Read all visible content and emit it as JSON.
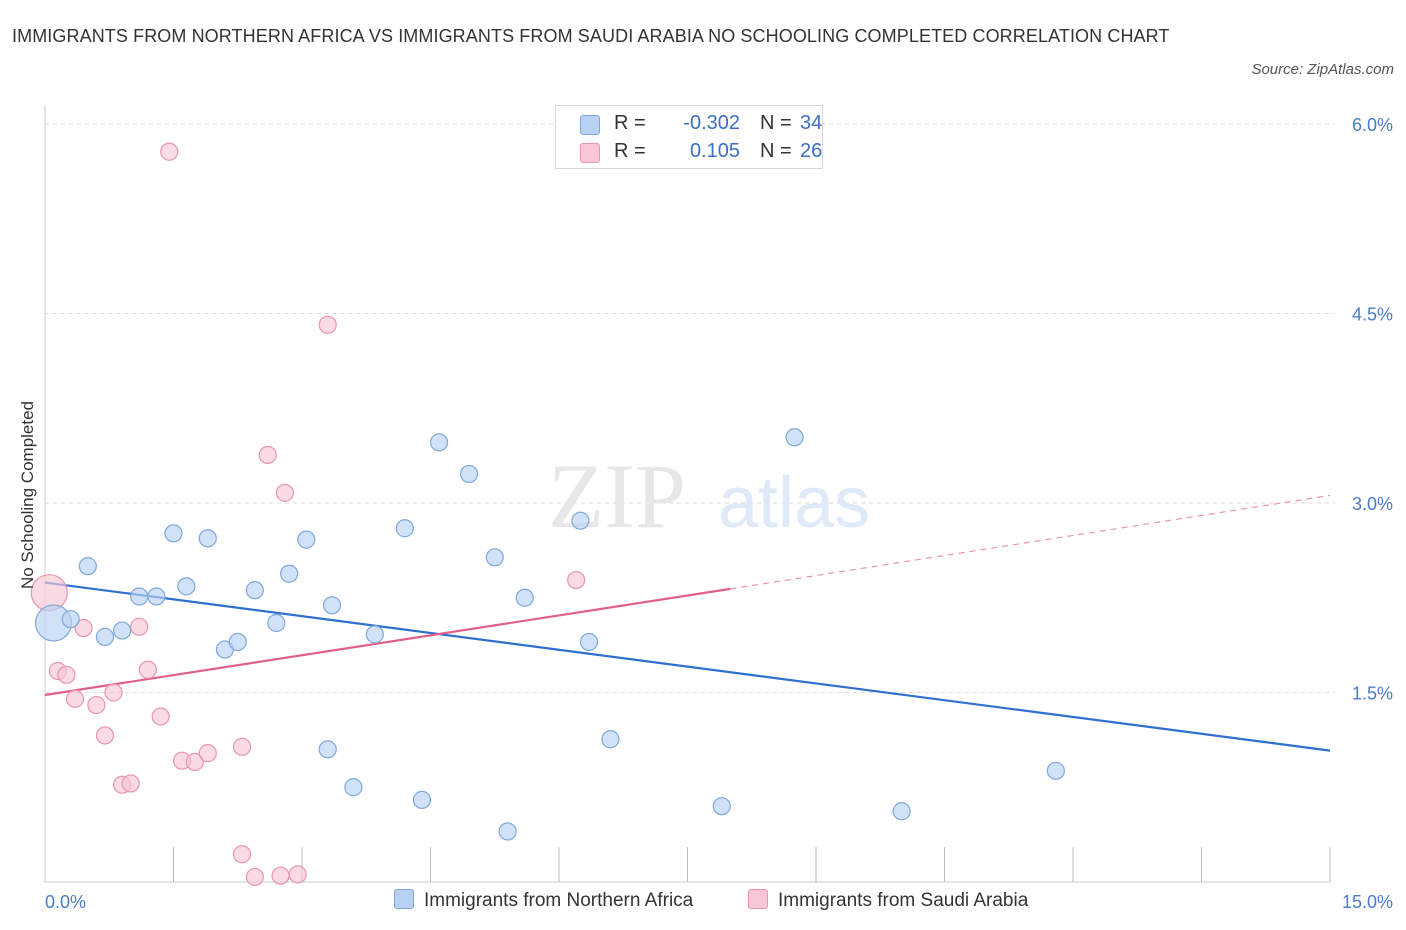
{
  "title": "IMMIGRANTS FROM NORTHERN AFRICA VS IMMIGRANTS FROM SAUDI ARABIA NO SCHOOLING COMPLETED CORRELATION CHART",
  "source": "Source: ZipAtlas.com",
  "watermark": {
    "zip": "ZIP",
    "atlas": "atlas"
  },
  "colors": {
    "blue_fill": "#b8d1f3",
    "blue_stroke": "#7fa8dc",
    "blue_line": "#2e6fd0",
    "pink_fill": "#f8c6d4",
    "pink_stroke": "#e995b0",
    "pink_line": "#e0608a",
    "tick": "#4a7cc8",
    "grid": "#d9d9d9"
  },
  "legend": {
    "rows": [
      {
        "r_label": "R =",
        "r_value": "-0.302",
        "n_label": "N =",
        "n_value": "34"
      },
      {
        "r_label": "R =",
        "r_value": "0.105",
        "n_label": "N =",
        "n_value": "26"
      }
    ]
  },
  "chart_data": {
    "type": "scatter",
    "title": "IMMIGRANTS FROM NORTHERN AFRICA VS IMMIGRANTS FROM SAUDI ARABIA NO SCHOOLING COMPLETED CORRELATION CHART",
    "xlabel": "",
    "ylabel": "No Schooling Completed",
    "xlim": [
      0,
      15
    ],
    "ylim": [
      0,
      6.15
    ],
    "x_tick_labels": [
      "0.0%",
      "15.0%"
    ],
    "y_ticks": [
      1.5,
      3.0,
      4.5,
      6.0
    ],
    "y_tick_labels": [
      "1.5%",
      "3.0%",
      "4.5%",
      "6.0%"
    ],
    "grid": true,
    "legend_position": "top-center",
    "series": [
      {
        "name": "Immigrants from Northern Africa",
        "color": "#b8d1f3",
        "r": -0.302,
        "n": 34,
        "trend": {
          "x": [
            0.0,
            15.0
          ],
          "y": [
            2.37,
            1.04
          ]
        },
        "points": [
          {
            "x": 0.1,
            "y": 2.05,
            "big": true
          },
          {
            "x": 0.3,
            "y": 2.08
          },
          {
            "x": 0.5,
            "y": 2.5
          },
          {
            "x": 0.7,
            "y": 1.94
          },
          {
            "x": 0.9,
            "y": 1.99
          },
          {
            "x": 1.1,
            "y": 2.26
          },
          {
            "x": 1.3,
            "y": 2.26
          },
          {
            "x": 1.5,
            "y": 2.76
          },
          {
            "x": 1.65,
            "y": 2.34
          },
          {
            "x": 1.9,
            "y": 2.72
          },
          {
            "x": 2.1,
            "y": 1.84
          },
          {
            "x": 2.25,
            "y": 1.9
          },
          {
            "x": 2.45,
            "y": 2.31
          },
          {
            "x": 2.7,
            "y": 2.05
          },
          {
            "x": 2.85,
            "y": 2.44
          },
          {
            "x": 3.05,
            "y": 2.71
          },
          {
            "x": 3.3,
            "y": 1.05
          },
          {
            "x": 3.35,
            "y": 2.19
          },
          {
            "x": 3.6,
            "y": 0.75
          },
          {
            "x": 3.85,
            "y": 1.96
          },
          {
            "x": 4.2,
            "y": 2.8
          },
          {
            "x": 4.4,
            "y": 0.65
          },
          {
            "x": 4.6,
            "y": 3.48
          },
          {
            "x": 4.95,
            "y": 3.23
          },
          {
            "x": 5.25,
            "y": 2.57
          },
          {
            "x": 5.4,
            "y": 0.4
          },
          {
            "x": 5.6,
            "y": 2.25
          },
          {
            "x": 6.25,
            "y": 2.86
          },
          {
            "x": 6.35,
            "y": 1.9
          },
          {
            "x": 6.6,
            "y": 1.13
          },
          {
            "x": 7.9,
            "y": 0.6
          },
          {
            "x": 8.75,
            "y": 3.52
          },
          {
            "x": 10.0,
            "y": 0.56
          },
          {
            "x": 11.8,
            "y": 0.88
          }
        ]
      },
      {
        "name": "Immigrants from Saudi Arabia",
        "color": "#f8c6d4",
        "r": 0.105,
        "n": 26,
        "trend": {
          "x": [
            0.0,
            8.0
          ],
          "y": [
            1.48,
            2.32
          ]
        },
        "trend_dashed": {
          "x": [
            8.0,
            15.0
          ],
          "y": [
            2.32,
            3.06
          ]
        },
        "points": [
          {
            "x": 0.05,
            "y": 2.29,
            "big": true
          },
          {
            "x": 0.15,
            "y": 1.67
          },
          {
            "x": 0.25,
            "y": 1.64
          },
          {
            "x": 0.35,
            "y": 1.45
          },
          {
            "x": 0.45,
            "y": 2.01
          },
          {
            "x": 0.6,
            "y": 1.4
          },
          {
            "x": 0.7,
            "y": 1.16
          },
          {
            "x": 0.8,
            "y": 1.5
          },
          {
            "x": 0.9,
            "y": 0.77
          },
          {
            "x": 1.0,
            "y": 0.78
          },
          {
            "x": 1.1,
            "y": 2.02
          },
          {
            "x": 1.2,
            "y": 1.68
          },
          {
            "x": 1.35,
            "y": 1.31
          },
          {
            "x": 1.45,
            "y": 5.78
          },
          {
            "x": 1.6,
            "y": 0.96
          },
          {
            "x": 1.75,
            "y": 0.95
          },
          {
            "x": 1.9,
            "y": 1.02
          },
          {
            "x": 2.3,
            "y": 0.22
          },
          {
            "x": 2.3,
            "y": 1.07
          },
          {
            "x": 2.45,
            "y": 0.04
          },
          {
            "x": 2.6,
            "y": 3.38
          },
          {
            "x": 2.75,
            "y": 0.05
          },
          {
            "x": 2.8,
            "y": 3.08
          },
          {
            "x": 2.95,
            "y": 0.06
          },
          {
            "x": 3.3,
            "y": 4.41
          },
          {
            "x": 6.2,
            "y": 2.39
          }
        ]
      }
    ]
  }
}
